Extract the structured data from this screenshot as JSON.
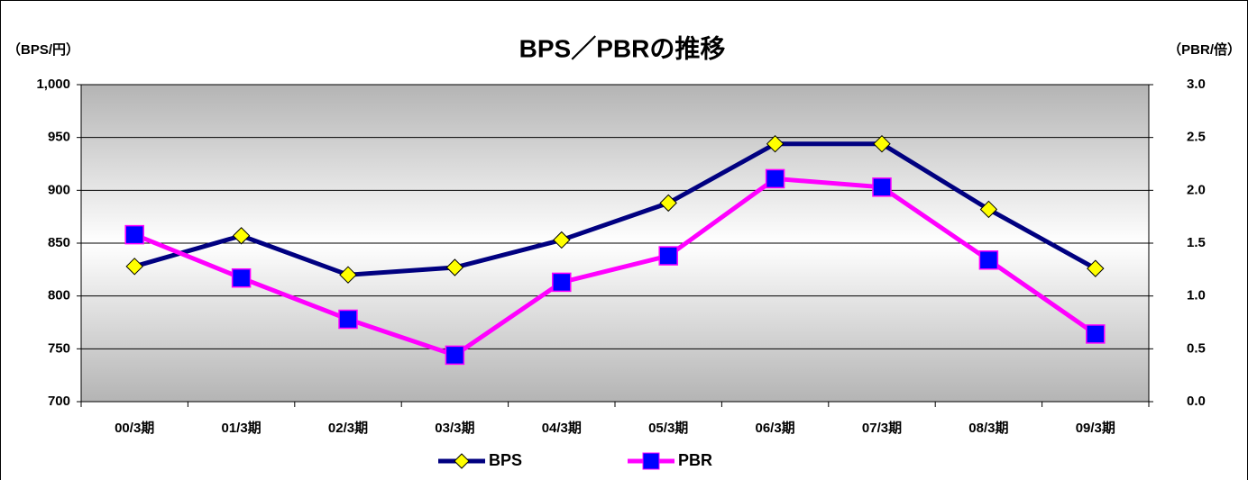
{
  "chart_data": {
    "type": "line",
    "title": "BPS／PBRの推移",
    "y_label": "（BPS/円）",
    "y2_label": "（PBR/倍）",
    "categories": [
      "00/3期",
      "01/3期",
      "02/3期",
      "03/3期",
      "04/3期",
      "05/3期",
      "06/3期",
      "07/3期",
      "08/3期",
      "09/3期"
    ],
    "series": [
      {
        "name": "BPS",
        "color": "#000080",
        "marker": "diamond",
        "marker_color": "#ffff00",
        "values": [
          828,
          857,
          820,
          827,
          853,
          888,
          944,
          944,
          882,
          826
        ]
      },
      {
        "name": "PBR",
        "color": "#ff00ff",
        "marker": "square",
        "marker_color": "#0000ff",
        "axis": "y2",
        "values": [
          1.58,
          1.17,
          0.78,
          0.44,
          1.13,
          1.38,
          2.11,
          2.03,
          1.34,
          0.64
        ]
      }
    ],
    "ylim": [
      700,
      1000
    ],
    "yticks": [
      700,
      750,
      800,
      850,
      900,
      950,
      {
        "value": 1000,
        "label": "1,000"
      }
    ],
    "y2lim": [
      0,
      3
    ],
    "y2ticks": [
      {
        "value": 0,
        "label": "0.0"
      },
      {
        "value": 0.5,
        "label": "0.5"
      },
      {
        "value": 1,
        "label": "1.0"
      },
      {
        "value": 1.5,
        "label": "1.5"
      },
      {
        "value": 2,
        "label": "2.0"
      },
      {
        "value": 2.5,
        "label": "2.5"
      },
      {
        "value": 3,
        "label": "3.0"
      }
    ],
    "grid": true,
    "legend": "bottom"
  }
}
